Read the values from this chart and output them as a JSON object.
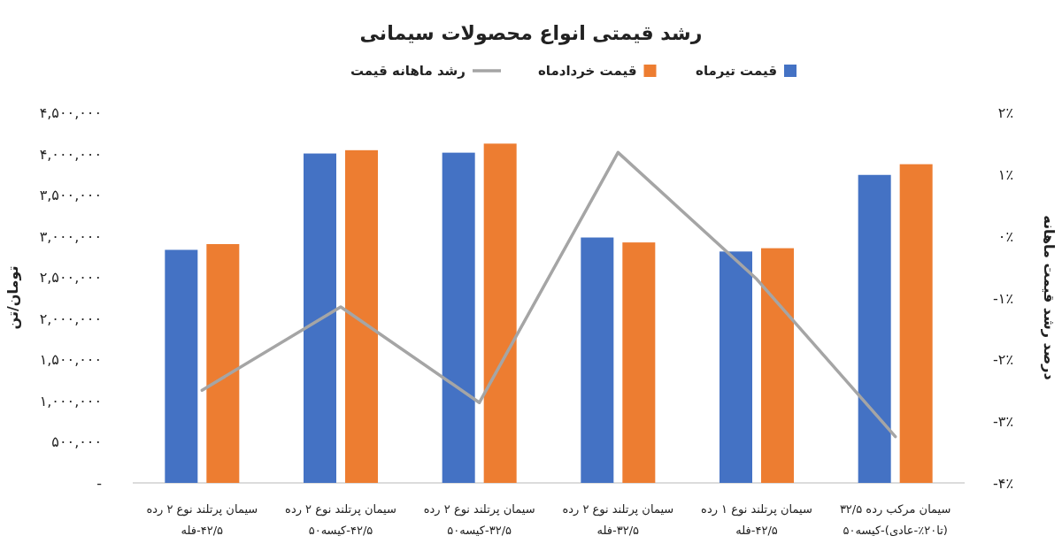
{
  "chart_data": {
    "type": "bar",
    "title": "رشد قیمتی انواع محصولات سیمانی",
    "ylabel": "تومان/تن",
    "y2label": "درصد رشد قیمت ماهانه",
    "categories": [
      "سیمان پرتلند نوع ۲ رده\n۴۲/۵-فله",
      "سیمان پرتلند نوع ۲ رده\n۴۲/۵-کیسه۵۰",
      "سیمان پرتلند نوع ۲ رده\n۳۲/۵-کیسه۵۰",
      "سیمان پرتلند نوع ۲ رده\n۳۲/۵-فله",
      "سیمان پرتلند نوع ۱ رده\n۴۲/۵-فله",
      "سیمان مرکب رده ۳۲/۵\n(تا۲۰٪-عادی)-کیسه۵۰"
    ],
    "series": [
      {
        "name": "قیمت تیرماه",
        "color": "#4472c4",
        "values": [
          2830000,
          4000000,
          4010000,
          2980000,
          2810000,
          3740000
        ]
      },
      {
        "name": "قیمت خردادماه",
        "color": "#ed7d31",
        "values": [
          2900000,
          4040000,
          4120000,
          2920000,
          2850000,
          3870000
        ]
      },
      {
        "name": "رشد ماهانه قیمت",
        "type": "line",
        "axis": "y2",
        "color": "#a5a5a5",
        "values": [
          -2.5,
          -1.15,
          -2.7,
          1.35,
          -0.7,
          -3.25
        ]
      }
    ],
    "ylim": [
      0,
      4500000
    ],
    "yticks": [
      {
        "value": 0,
        "label": "-"
      },
      {
        "value": 500000,
        "label": "۵۰۰,۰۰۰"
      },
      {
        "value": 1000000,
        "label": "۱,۰۰۰,۰۰۰"
      },
      {
        "value": 1500000,
        "label": "۱,۵۰۰,۰۰۰"
      },
      {
        "value": 2000000,
        "label": "۲,۰۰۰,۰۰۰"
      },
      {
        "value": 2500000,
        "label": "۲,۵۰۰,۰۰۰"
      },
      {
        "value": 3000000,
        "label": "۳,۰۰۰,۰۰۰"
      },
      {
        "value": 3500000,
        "label": "۳,۵۰۰,۰۰۰"
      },
      {
        "value": 4000000,
        "label": "۴,۰۰۰,۰۰۰"
      },
      {
        "value": 4500000,
        "label": "۴,۵۰۰,۰۰۰"
      }
    ],
    "y2lim": [
      -4,
      2
    ],
    "y2ticks": [
      {
        "value": -4,
        "label": "-۴٪"
      },
      {
        "value": -3,
        "label": "-۳٪"
      },
      {
        "value": -2,
        "label": "-۲٪"
      },
      {
        "value": -1,
        "label": "-۱٪"
      },
      {
        "value": 0,
        "label": "۰٪"
      },
      {
        "value": 1,
        "label": "۱٪"
      },
      {
        "value": 2,
        "label": "۲٪"
      }
    ],
    "legend": "top",
    "grid": false,
    "marker": "none",
    "line_style": "solid"
  }
}
